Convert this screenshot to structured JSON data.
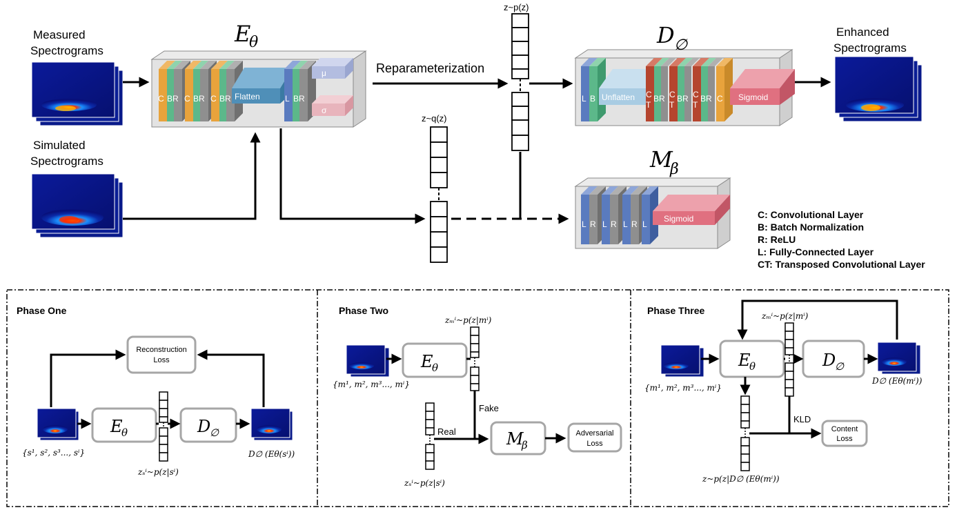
{
  "top": {
    "measured_label": [
      "Measured",
      "Spectrograms"
    ],
    "simulated_label": [
      "Simulated",
      "Spectrograms"
    ],
    "enhanced_label": [
      "Enhanced",
      "Spectrograms"
    ],
    "encoder_title": "E",
    "encoder_sub": "θ",
    "decoder_title": "D",
    "decoder_sub": "∅",
    "mapper_title": "M",
    "mapper_sub": "β",
    "reparam_label": "Reparameterization",
    "zp_label": "z~p(z)",
    "zq_label": "z~q(z)",
    "encoder_layers": [
      "C",
      "BR",
      "C",
      "BR",
      "C",
      "BR",
      "Flatten",
      "L",
      "BR",
      "μ",
      "σ"
    ],
    "decoder_layers": [
      "L",
      "B",
      "Unflatten",
      "C",
      "T",
      "BR",
      "C",
      "T",
      "BR",
      "C",
      "T",
      "BR",
      "C",
      "Sigmoid"
    ],
    "mapper_layers": [
      "L",
      "R",
      "L",
      "R",
      "L",
      "R",
      "L",
      "Sigmoid"
    ]
  },
  "legend": [
    "C: Convolutional Layer",
    "B: Batch Normalization",
    "R: ReLU",
    "L: Fully-Connected Layer",
    "CT: Transposed Convolutional Layer"
  ],
  "phases": {
    "one": {
      "title": "Phase One",
      "loss_label": [
        "Reconstruction",
        "Loss"
      ],
      "input_set": "{s¹, s², s³..., sⁱ}",
      "output_label": "D∅ (Eθ(sⁱ))",
      "z_label": "zₛⁱ~p(z|sⁱ)",
      "enc": "E",
      "enc_sub": "θ",
      "dec": "D",
      "dec_sub": "∅"
    },
    "two": {
      "title": "Phase Two",
      "z_top_label": "zₘⁱ~p(z|mⁱ)",
      "input_set": "{m¹, m², m³..., mⁱ}",
      "fake_label": "Fake",
      "real_label": "Real",
      "loss_label": [
        "Adversarial",
        "Loss"
      ],
      "z_bottom_label": "zₛⁱ~p(z|sⁱ)",
      "enc": "E",
      "enc_sub": "θ",
      "map": "M",
      "map_sub": "β"
    },
    "three": {
      "title": "Phase Three",
      "z_top_label": "zₘⁱ~p(z|mⁱ)",
      "input_set": "{m¹, m², m³..., mⁱ}",
      "output_label": "D∅ (Eθ(mⁱ))",
      "kld_label": "KLD",
      "loss_label": [
        "Content",
        "Loss"
      ],
      "z_bottom_label": "z~p(z|D∅ (Eθ(mⁱ))",
      "enc": "E",
      "enc_sub": "θ",
      "dec": "D",
      "dec_sub": "∅"
    }
  },
  "colors": {
    "conv": "#e8a33c",
    "bn": "#5cb88a",
    "relu": "#8f8f8f",
    "fc": "#5a7bbf",
    "flatten": "#4f8fb8",
    "unflatten": "#a9cce3",
    "mu": "#b3bde0",
    "sigma": "#e8b4bc",
    "transposed": "#b5452e",
    "sigmoid": "#e07080",
    "box": "#d9d9d9",
    "phase_box": "#a6a6a6"
  }
}
